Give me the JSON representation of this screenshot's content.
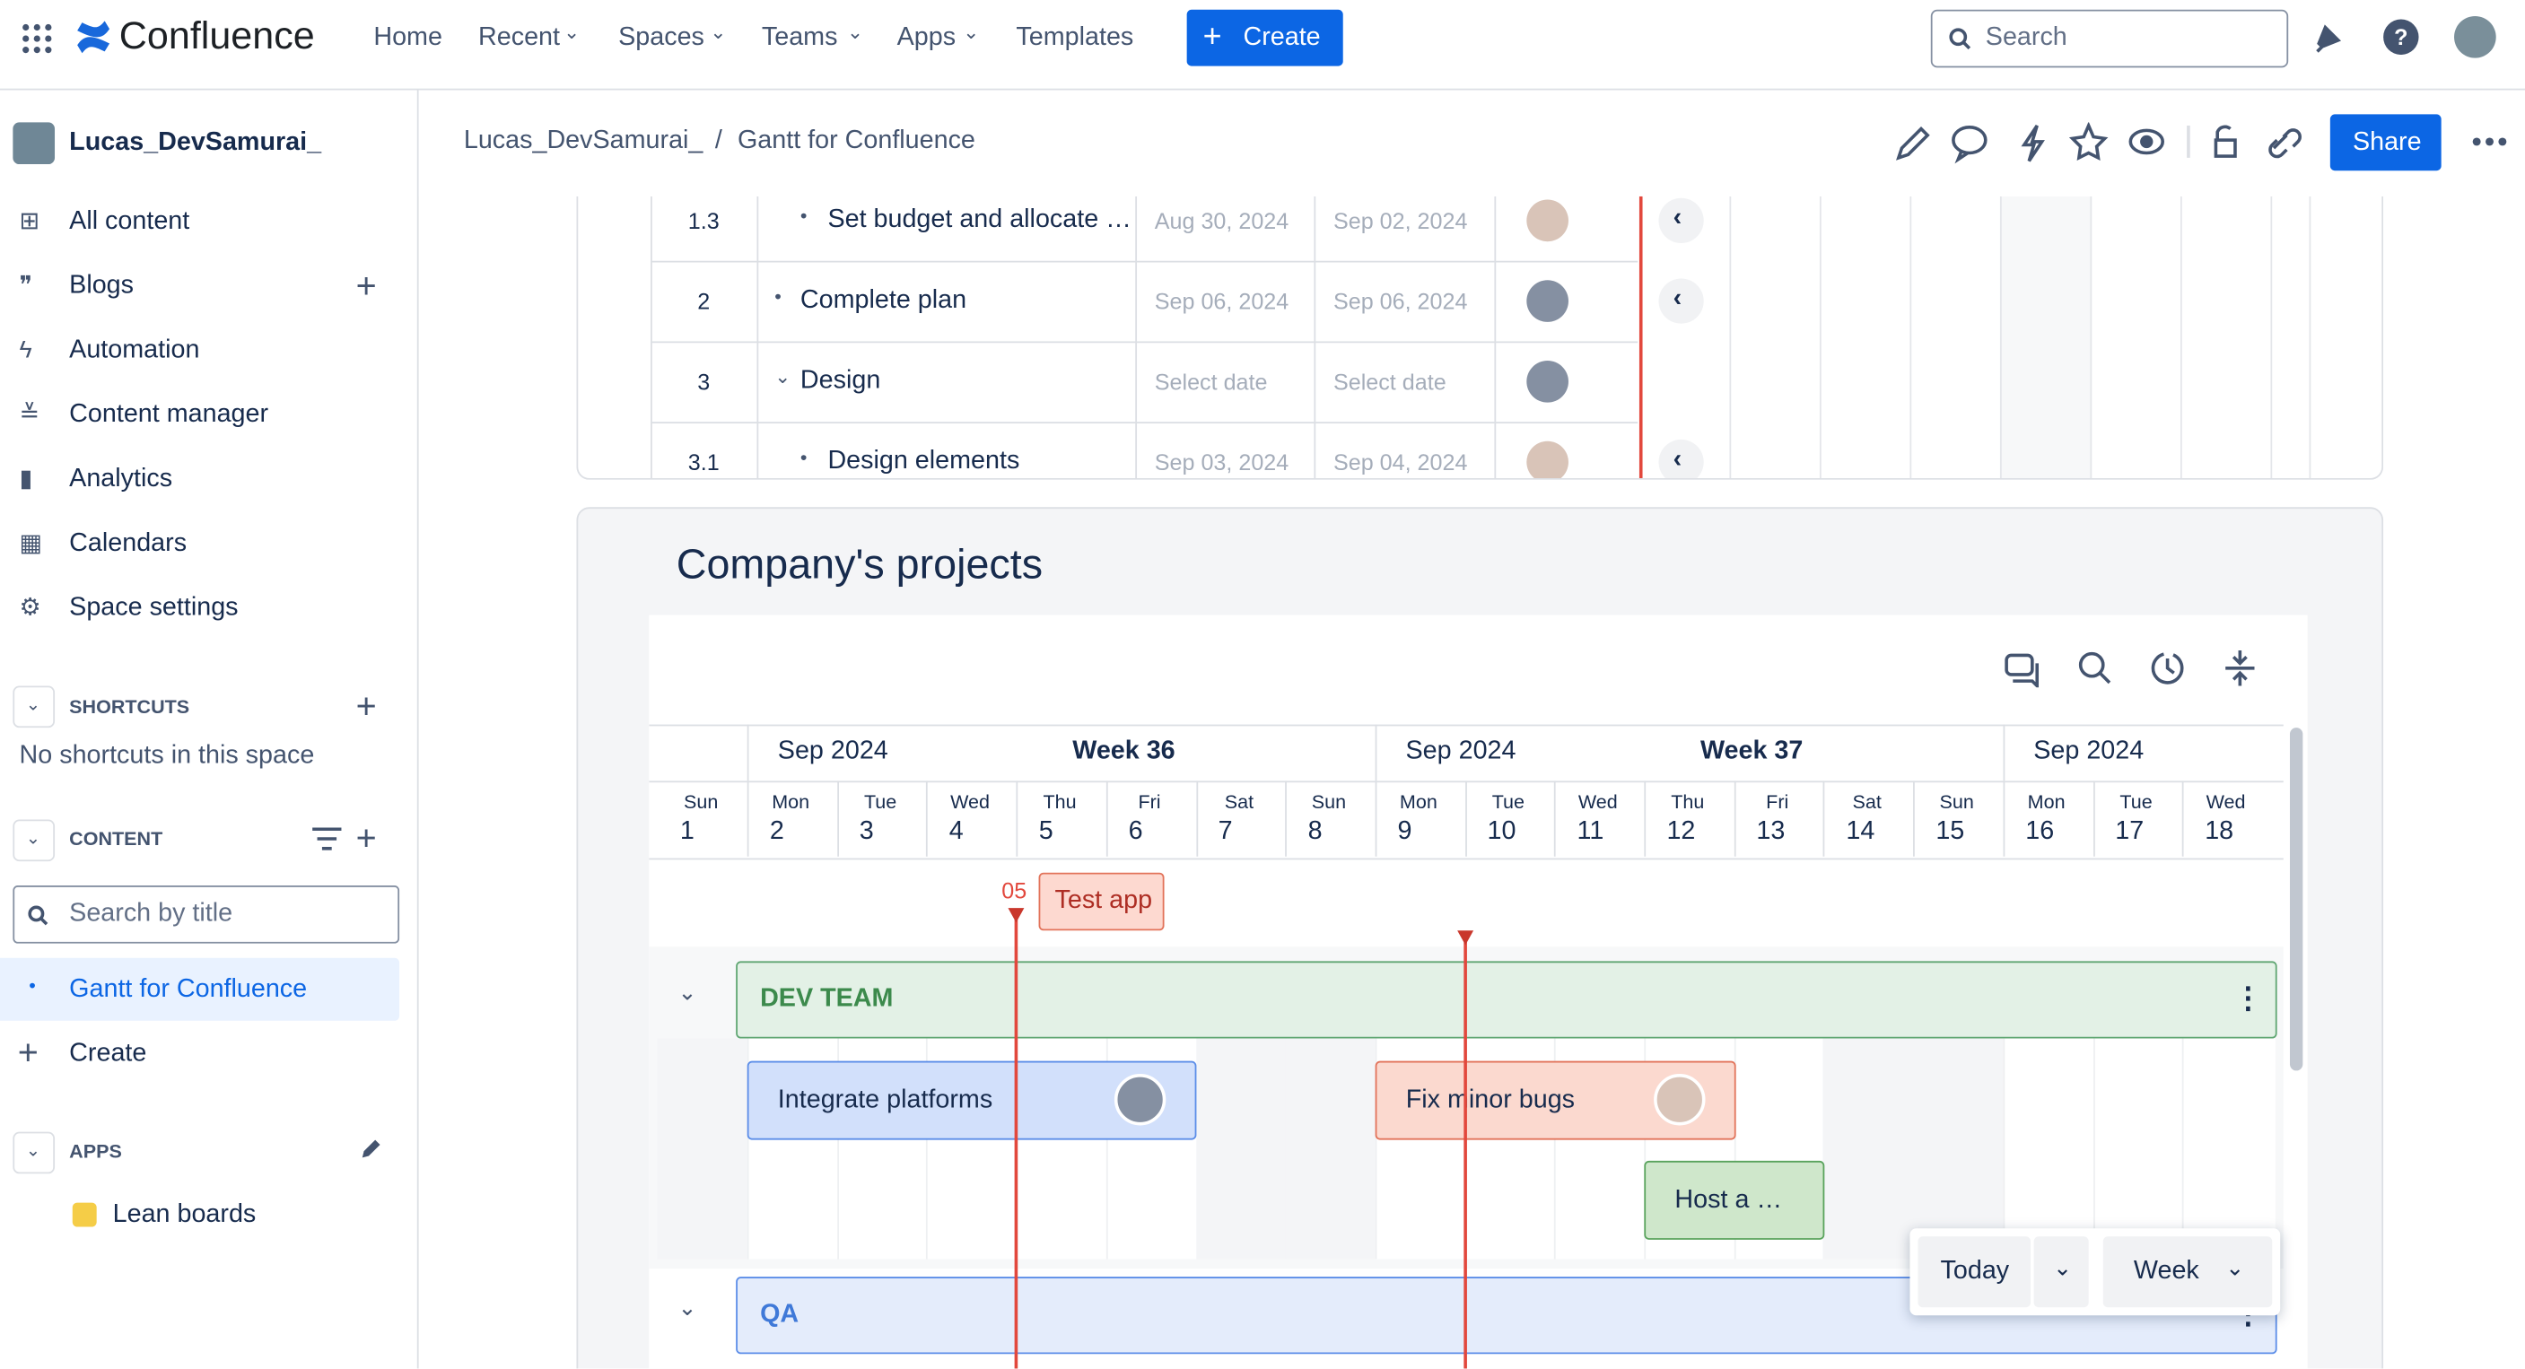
{
  "topbar": {
    "product": "Confluence",
    "nav": [
      "Home",
      "Recent",
      "Spaces",
      "Teams",
      "Apps",
      "Templates"
    ],
    "create": "Create",
    "search": "Search"
  },
  "sidebar": {
    "space": "Lucas_DevSamurai_",
    "items": [
      "All content",
      "Blogs",
      "Automation",
      "Content manager",
      "Analytics",
      "Calendars",
      "Space settings"
    ],
    "shortcuts": {
      "title": "SHORTCUTS",
      "empty": "No shortcuts in this space"
    },
    "content": {
      "title": "CONTENT",
      "search": "Search by title",
      "page": "Gantt for Confluence",
      "create": "Create"
    },
    "apps": {
      "title": "APPS",
      "items": [
        "Lean boards"
      ]
    }
  },
  "header": {
    "breadcrumb": [
      "Lucas_DevSamurai_",
      "Gantt for Confluence"
    ],
    "separator": "/",
    "share": "Share"
  },
  "table": {
    "rows": [
      [
        "1.3",
        "Set budget and allocate …",
        "Aug 30, 2024",
        "Sep 02, 2024"
      ],
      [
        "2",
        "Complete plan",
        "Sep 06, 2024",
        "Sep 06, 2024"
      ],
      [
        "3",
        "Design",
        "Select date",
        "Select date"
      ],
      [
        "3.1",
        "Design elements",
        "Sep 03, 2024",
        "Sep 04, 2024"
      ]
    ]
  },
  "gantt": {
    "title": "Company's projects",
    "weeks": [
      {
        "month": "Sep 2024",
        "week": "Week 36"
      },
      {
        "month": "Sep 2024",
        "week": "Week 37"
      },
      {
        "month": "Sep 2024"
      }
    ],
    "days": [
      {
        "dow": "Sun",
        "day": 1
      },
      {
        "dow": "Mon",
        "day": 2
      },
      {
        "dow": "Tue",
        "day": 3
      },
      {
        "dow": "Wed",
        "day": 4
      },
      {
        "dow": "Thu",
        "day": 5
      },
      {
        "dow": "Fri",
        "day": 6
      },
      {
        "dow": "Sat",
        "day": 7
      },
      {
        "dow": "Sun",
        "day": 8
      },
      {
        "dow": "Mon",
        "day": 9
      },
      {
        "dow": "Tue",
        "day": 10
      },
      {
        "dow": "Wed",
        "day": 11
      },
      {
        "dow": "Thu",
        "day": 12
      },
      {
        "dow": "Fri",
        "day": 13
      },
      {
        "dow": "Sat",
        "day": 14
      },
      {
        "dow": "Sun",
        "day": 15
      },
      {
        "dow": "Mon",
        "day": 16
      },
      {
        "dow": "Tue",
        "day": 17
      },
      {
        "dow": "Wed",
        "day": 18
      }
    ],
    "milestone": {
      "date": "05",
      "name": "Test app"
    },
    "groups": [
      {
        "name": "DEV TEAM",
        "tasks": [
          "Integrate platforms",
          "Fix minor bugs",
          "Host a …"
        ]
      },
      {
        "name": "QA"
      }
    ],
    "controls": [
      "Today",
      "Week"
    ]
  }
}
